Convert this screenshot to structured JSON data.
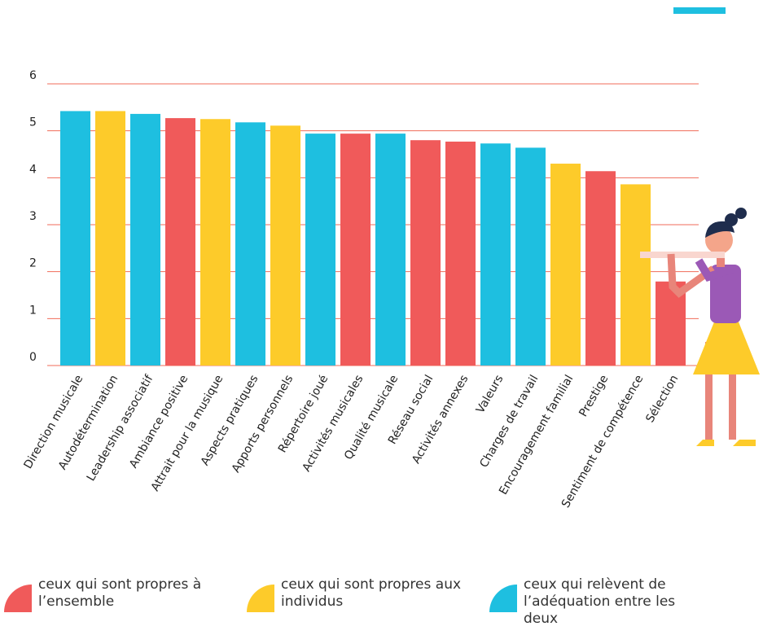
{
  "chart_data": {
    "type": "bar",
    "categories": [
      "Direction musicale",
      "Autodétermination",
      "Leadership associatif",
      "Ambiance positive",
      "Attrait pour la musique",
      "Aspects pratiques",
      "Apports personnels",
      "Répertoire joué",
      "Activités musicales",
      "Qualité musicale",
      "Réseau social",
      "Activités annexes",
      "Valeurs",
      "Charges de travail",
      "Encouragement familial",
      "Prestige",
      "Sentiment de compétence",
      "Sélection"
    ],
    "values": [
      5.42,
      5.42,
      5.36,
      5.27,
      5.25,
      5.18,
      5.11,
      4.94,
      4.94,
      4.94,
      4.8,
      4.77,
      4.73,
      4.64,
      4.3,
      4.14,
      3.86,
      1.79
    ],
    "colors": [
      "#1ebfe0",
      "#fdcb2a",
      "#1ebfe0",
      "#f05a5a",
      "#fdcb2a",
      "#1ebfe0",
      "#fdcb2a",
      "#1ebfe0",
      "#f05a5a",
      "#1ebfe0",
      "#f05a5a",
      "#f05a5a",
      "#1ebfe0",
      "#1ebfe0",
      "#fdcb2a",
      "#f05a5a",
      "#fdcb2a",
      "#f05a5a"
    ],
    "ylim": [
      0,
      6
    ],
    "yticks": [
      0,
      1,
      2,
      3,
      4,
      5,
      6
    ],
    "grid": true,
    "legend": [
      {
        "label": "ceux qui sont propres à l’ensemble",
        "color": "#f05a5a"
      },
      {
        "label": "ceux qui sont propres aux individus",
        "color": "#fdcb2a"
      },
      {
        "label": "ceux qui relèvent de l’adéquation entre les deux",
        "color": "#1ebfe0"
      }
    ]
  }
}
